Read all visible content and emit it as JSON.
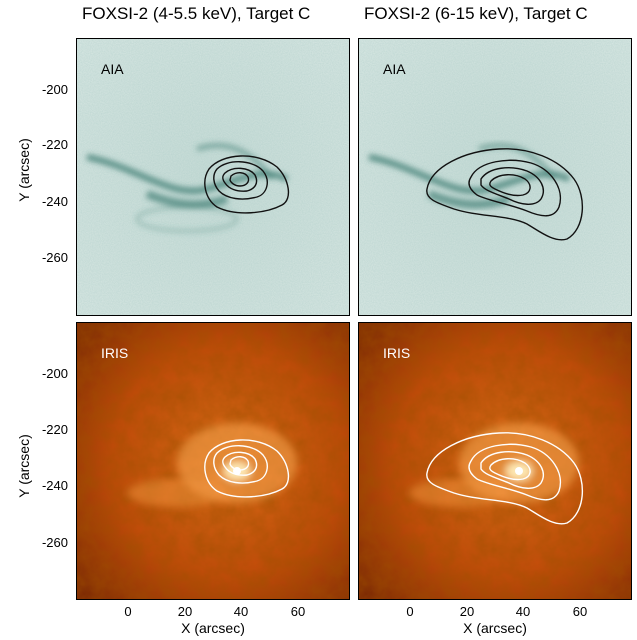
{
  "figure": {
    "columns": [
      {
        "title": "FOXSI-2 (4-5.5 keV), Target C"
      },
      {
        "title": "FOXSI-2 (6-15 keV), Target C"
      }
    ],
    "rows": [
      {
        "label": "AIA",
        "ylabel": "Y (arcsec)",
        "colormap": "teal"
      },
      {
        "label": "IRIS",
        "ylabel": "Y (arcsec)",
        "colormap": "orange"
      }
    ],
    "xlabel": "X (arcsec)",
    "xticks": [
      "0",
      "20",
      "40",
      "60"
    ],
    "yticks": [
      "-200",
      "-220",
      "-240",
      "-260"
    ],
    "contour_colors": {
      "aia": "#111111",
      "iris": "#ffffff"
    }
  }
}
